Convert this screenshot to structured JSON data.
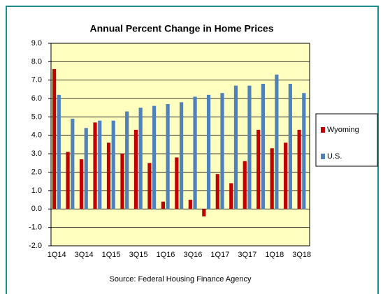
{
  "chart_data": {
    "type": "bar",
    "title": "Annual Percent Change in Home Prices",
    "source": "Source: Federal Housing Finance Agency",
    "categories": [
      "1Q14",
      null,
      "3Q14",
      null,
      "1Q15",
      null,
      "3Q15",
      null,
      "1Q16",
      null,
      "3Q16",
      null,
      "1Q17",
      null,
      "3Q17",
      null,
      "1Q18",
      null,
      "3Q18"
    ],
    "series": [
      {
        "name": "Wyoming",
        "color": "#c00000",
        "values": [
          7.6,
          3.1,
          2.7,
          4.7,
          3.6,
          3.0,
          4.3,
          2.5,
          0.4,
          2.8,
          0.5,
          -0.4,
          1.9,
          1.4,
          2.6,
          4.3,
          3.3,
          3.6,
          4.3
        ]
      },
      {
        "name": "U.S.",
        "color": "#4f81bd",
        "values": [
          6.2,
          4.9,
          4.4,
          4.8,
          4.8,
          5.3,
          5.5,
          5.6,
          5.7,
          5.8,
          6.1,
          6.2,
          6.3,
          6.7,
          6.7,
          6.8,
          7.3,
          6.8,
          6.3
        ]
      }
    ],
    "ylim": [
      -2,
      9
    ],
    "yticks": [
      {
        "value": -2,
        "label": "-2.0"
      },
      {
        "value": -1,
        "label": "-1.0"
      },
      {
        "value": 0,
        "label": "0.0"
      },
      {
        "value": 1,
        "label": "1.0"
      },
      {
        "value": 2,
        "label": "2.0"
      },
      {
        "value": 3,
        "label": "3.0"
      },
      {
        "value": 4,
        "label": "4.0"
      },
      {
        "value": 5,
        "label": "5.0"
      },
      {
        "value": 6,
        "label": "6.0"
      },
      {
        "value": 7,
        "label": "7.0"
      },
      {
        "value": 8,
        "label": "8.0"
      },
      {
        "value": 9,
        "label": "9.0"
      }
    ],
    "grid": true,
    "legend": "right"
  }
}
